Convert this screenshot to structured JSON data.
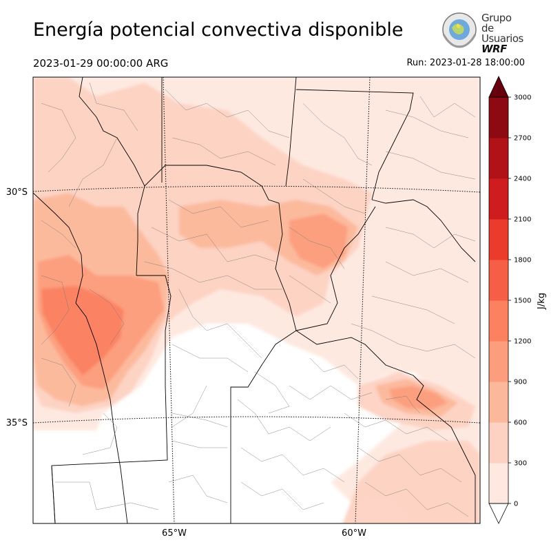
{
  "header": {
    "title": "Energía potencial convectiva disponible",
    "valid_time": "2023-01-29 00:00:00 ARG",
    "run_time": "Run: 2023-01-28 18:00:00"
  },
  "logo": {
    "line1": "Grupo de",
    "line2": "Usuarios",
    "line3": "WRF"
  },
  "map": {
    "lat_labels": [
      "30°S",
      "35°S"
    ],
    "lon_labels": [
      "65°W",
      "60°W"
    ],
    "field": "CAPE",
    "region": "Centro de Argentina"
  },
  "colorbar": {
    "unit": "J/kg",
    "ticks": [
      "0",
      "300",
      "600",
      "900",
      "1200",
      "1500",
      "1800",
      "2100",
      "2400",
      "2700",
      "3000"
    ],
    "colors": [
      "#fee8df",
      "#fdd2c3",
      "#fcb89b",
      "#fc9d7d",
      "#fb8161",
      "#f65e45",
      "#ea3b2c",
      "#cf1c1e",
      "#b01218",
      "#8e0a13",
      "#6a000d"
    ],
    "over_color": "#67000d",
    "under_color": "#ffffff"
  }
}
